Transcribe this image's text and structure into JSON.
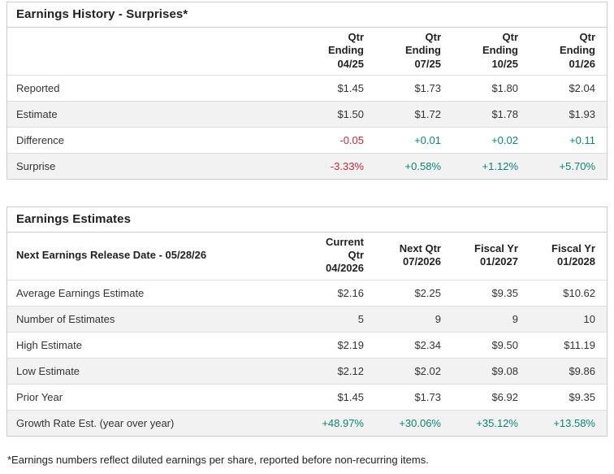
{
  "history": {
    "title": "Earnings History - Surprises*",
    "header_label": "",
    "columns": [
      "Qtr Ending\n04/25",
      "Qtr Ending\n07/25",
      "Qtr Ending\n10/25",
      "Qtr Ending\n01/26"
    ],
    "rows": [
      {
        "label": "Reported",
        "values": [
          "$1.45",
          "$1.73",
          "$1.80",
          "$2.04"
        ],
        "tones": [
          "neutral",
          "neutral",
          "neutral",
          "neutral"
        ]
      },
      {
        "label": "Estimate",
        "values": [
          "$1.50",
          "$1.72",
          "$1.78",
          "$1.93"
        ],
        "tones": [
          "neutral",
          "neutral",
          "neutral",
          "neutral"
        ]
      },
      {
        "label": "Difference",
        "values": [
          "-0.05",
          "+0.01",
          "+0.02",
          "+0.11"
        ],
        "tones": [
          "negative",
          "positive",
          "positive",
          "positive"
        ]
      },
      {
        "label": "Surprise",
        "values": [
          "-3.33%",
          "+0.58%",
          "+1.12%",
          "+5.70%"
        ],
        "tones": [
          "negative",
          "positive",
          "positive",
          "positive"
        ]
      }
    ]
  },
  "estimates": {
    "title": "Earnings Estimates",
    "header_label": "Next Earnings Release Date - 05/28/26",
    "columns": [
      "Current Qtr\n04/2026",
      "Next Qtr\n07/2026",
      "Fiscal Yr\n01/2027",
      "Fiscal Yr\n01/2028"
    ],
    "rows": [
      {
        "label": "Average Earnings Estimate",
        "values": [
          "$2.16",
          "$2.25",
          "$9.35",
          "$10.62"
        ],
        "tones": [
          "neutral",
          "neutral",
          "neutral",
          "neutral"
        ]
      },
      {
        "label": "Number of Estimates",
        "values": [
          "5",
          "9",
          "9",
          "10"
        ],
        "tones": [
          "neutral",
          "neutral",
          "neutral",
          "neutral"
        ]
      },
      {
        "label": "High Estimate",
        "values": [
          "$2.19",
          "$2.34",
          "$9.50",
          "$11.19"
        ],
        "tones": [
          "neutral",
          "neutral",
          "neutral",
          "neutral"
        ]
      },
      {
        "label": "Low Estimate",
        "values": [
          "$2.12",
          "$2.02",
          "$9.08",
          "$9.86"
        ],
        "tones": [
          "neutral",
          "neutral",
          "neutral",
          "neutral"
        ]
      },
      {
        "label": "Prior Year",
        "values": [
          "$1.45",
          "$1.73",
          "$6.92",
          "$9.35"
        ],
        "tones": [
          "neutral",
          "neutral",
          "neutral",
          "neutral"
        ]
      },
      {
        "label": "Growth Rate Est. (year over year)",
        "values": [
          "+48.97%",
          "+30.06%",
          "+35.12%",
          "+13.58%"
        ],
        "tones": [
          "positive",
          "positive",
          "positive",
          "positive"
        ]
      }
    ]
  },
  "footnote": "*Earnings numbers reflect diluted earnings per share, reported before non-recurring items.",
  "colors": {
    "positive": "#0e8573",
    "negative": "#c12b3e",
    "row_alt_bg": "#f2f2f2",
    "border": "#cccccc"
  }
}
